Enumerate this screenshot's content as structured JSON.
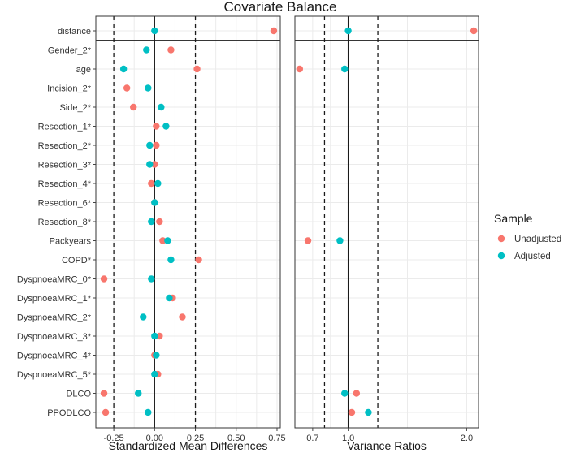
{
  "chart_data": {
    "type": "scatter",
    "title": "Covariate Balance",
    "legend": {
      "title": "Sample",
      "position": "right",
      "entries": [
        {
          "name": "Unadjusted",
          "color": "#F8766D"
        },
        {
          "name": "Adjusted",
          "color": "#00BFC4"
        }
      ]
    },
    "covariates": [
      "distance",
      "Gender_2*",
      "age",
      "Incision_2*",
      "Side_2*",
      "Resection_1*",
      "Resection_2*",
      "Resection_3*",
      "Resection_4*",
      "Resection_6*",
      "Resection_8*",
      "Packyears",
      "COPD*",
      "DyspnoeaMRC_0*",
      "DyspnoeaMRC_1*",
      "DyspnoeaMRC_2*",
      "DyspnoeaMRC_3*",
      "DyspnoeaMRC_4*",
      "DyspnoeaMRC_5*",
      "DLCO",
      "PPODLCO"
    ],
    "panels": [
      {
        "xlabel": "Standardized Mean Differences",
        "xlim": [
          -0.36,
          0.77
        ],
        "xticks": [
          -0.25,
          0.0,
          0.25,
          0.5,
          0.75
        ],
        "xtick_labels": [
          "-0.25",
          "0.00",
          "0.25",
          "0.50",
          "0.75"
        ],
        "solid_line": 0.0,
        "dashed_lines": [
          -0.25,
          0.25
        ],
        "series": [
          {
            "name": "Unadjusted",
            "values": [
              0.73,
              0.1,
              0.26,
              -0.17,
              -0.13,
              0.01,
              0.01,
              0.0,
              -0.02,
              0.0,
              0.03,
              0.05,
              0.27,
              -0.31,
              0.11,
              0.17,
              0.03,
              0.0,
              0.02,
              -0.31,
              -0.3
            ]
          },
          {
            "name": "Adjusted",
            "values": [
              0.0,
              -0.05,
              -0.19,
              -0.04,
              0.04,
              0.07,
              -0.03,
              -0.03,
              0.02,
              0.0,
              -0.02,
              0.08,
              0.1,
              -0.02,
              0.09,
              -0.07,
              0.0,
              0.01,
              0.0,
              -0.1,
              -0.04
            ]
          }
        ]
      },
      {
        "xlabel": "Variance Ratios",
        "xlim": [
          0.55,
          2.1
        ],
        "xticks": [
          0.7,
          1.0,
          2.0
        ],
        "xtick_labels": [
          "0.7",
          "1.0",
          "2.0"
        ],
        "solid_line": 1.0,
        "dashed_lines": [
          0.8,
          1.25
        ],
        "series": [
          {
            "name": "Unadjusted",
            "values": [
              2.06,
              null,
              0.59,
              null,
              null,
              null,
              null,
              null,
              null,
              null,
              null,
              0.66,
              null,
              null,
              null,
              null,
              null,
              null,
              null,
              1.07,
              1.03
            ]
          },
          {
            "name": "Adjusted",
            "values": [
              1.0,
              null,
              0.97,
              null,
              null,
              null,
              null,
              null,
              null,
              null,
              null,
              0.93,
              null,
              null,
              null,
              null,
              null,
              null,
              null,
              0.97,
              1.17
            ]
          }
        ]
      }
    ]
  }
}
